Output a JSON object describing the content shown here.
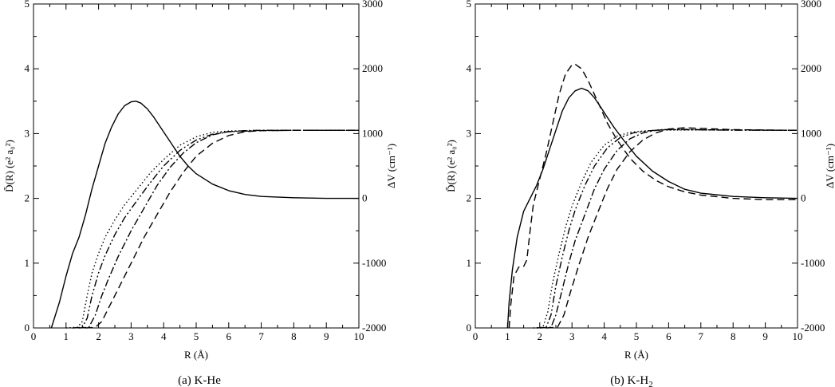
{
  "figure": {
    "captions": [
      "(a) K-He",
      "(b) K-H"
    ],
    "caption_b_subscript": "2"
  },
  "chart_data": [
    {
      "type": "line",
      "panel": "(a) K-He",
      "xlabel": "R (Å)",
      "ylabel": "D̃(R) (e² a₀²)",
      "y2label": "ΔV (cm⁻¹)",
      "xlim": [
        0,
        10
      ],
      "ylim": [
        0,
        5
      ],
      "y2lim": [
        -2000,
        3000
      ],
      "x_ticks": [
        "0",
        "1",
        "2",
        "3",
        "4",
        "5",
        "6",
        "7",
        "8",
        "9",
        "10"
      ],
      "y_ticks": [
        "0",
        "1",
        "2",
        "3",
        "4",
        "5"
      ],
      "y2_ticks": [
        "-2000",
        "-1000",
        "0",
        "1000",
        "2000",
        "3000"
      ],
      "grid": false,
      "series": [
        {
          "style": "solid",
          "axis": "left",
          "points": [
            [
              0.55,
              0
            ],
            [
              0.8,
              0.4
            ],
            [
              1.0,
              0.8
            ],
            [
              1.2,
              1.15
            ],
            [
              1.4,
              1.4
            ],
            [
              1.6,
              1.75
            ],
            [
              1.8,
              2.15
            ],
            [
              2.0,
              2.5
            ],
            [
              2.2,
              2.85
            ],
            [
              2.4,
              3.1
            ],
            [
              2.6,
              3.3
            ],
            [
              2.8,
              3.43
            ],
            [
              3.0,
              3.49
            ],
            [
              3.15,
              3.5
            ],
            [
              3.3,
              3.47
            ],
            [
              3.5,
              3.38
            ],
            [
              3.7,
              3.25
            ],
            [
              3.9,
              3.1
            ],
            [
              4.1,
              2.95
            ],
            [
              4.3,
              2.8
            ],
            [
              4.5,
              2.65
            ],
            [
              4.75,
              2.5
            ],
            [
              5.0,
              2.38
            ],
            [
              5.5,
              2.22
            ],
            [
              6.0,
              2.12
            ],
            [
              6.5,
              2.06
            ],
            [
              7.0,
              2.03
            ],
            [
              8.0,
              2.01
            ],
            [
              9.0,
              2.0
            ],
            [
              10.0,
              2.0
            ]
          ]
        },
        {
          "style": "dotted",
          "axis": "right",
          "points": [
            [
              1.0,
              -2000
            ],
            [
              1.35,
              -1990
            ],
            [
              1.5,
              -1900
            ],
            [
              1.65,
              -1500
            ],
            [
              1.8,
              -1150
            ],
            [
              2.0,
              -850
            ],
            [
              2.2,
              -600
            ],
            [
              2.5,
              -330
            ],
            [
              2.8,
              -100
            ],
            [
              3.2,
              150
            ],
            [
              3.6,
              400
            ],
            [
              4.0,
              600
            ],
            [
              4.5,
              820
            ],
            [
              5.0,
              950
            ],
            [
              5.5,
              1020
            ],
            [
              6.0,
              1040
            ],
            [
              7.0,
              1050
            ],
            [
              8.0,
              1050
            ],
            [
              10.0,
              1050
            ]
          ]
        },
        {
          "style": "dash-dot-dot",
          "axis": "right",
          "points": [
            [
              1.2,
              -2000
            ],
            [
              1.5,
              -1990
            ],
            [
              1.65,
              -1850
            ],
            [
              1.8,
              -1500
            ],
            [
              2.0,
              -1150
            ],
            [
              2.2,
              -880
            ],
            [
              2.5,
              -560
            ],
            [
              2.8,
              -300
            ],
            [
              3.2,
              -20
            ],
            [
              3.6,
              250
            ],
            [
              4.0,
              500
            ],
            [
              4.5,
              740
            ],
            [
              5.0,
              900
            ],
            [
              5.5,
              990
            ],
            [
              6.0,
              1030
            ],
            [
              7.0,
              1045
            ],
            [
              8.0,
              1050
            ],
            [
              10.0,
              1050
            ]
          ]
        },
        {
          "style": "dash-dot",
          "axis": "right",
          "points": [
            [
              1.4,
              -2000
            ],
            [
              1.7,
              -1990
            ],
            [
              1.9,
              -1800
            ],
            [
              2.1,
              -1500
            ],
            [
              2.3,
              -1250
            ],
            [
              2.6,
              -900
            ],
            [
              3.0,
              -500
            ],
            [
              3.4,
              -150
            ],
            [
              3.8,
              200
            ],
            [
              4.2,
              480
            ],
            [
              4.6,
              700
            ],
            [
              5.0,
              860
            ],
            [
              5.5,
              980
            ],
            [
              6.0,
              1030
            ],
            [
              6.5,
              1045
            ],
            [
              7.0,
              1050
            ],
            [
              10.0,
              1050
            ]
          ]
        },
        {
          "style": "dashed",
          "axis": "right",
          "points": [
            [
              1.6,
              -2000
            ],
            [
              1.9,
              -1990
            ],
            [
              2.1,
              -1900
            ],
            [
              2.3,
              -1700
            ],
            [
              2.6,
              -1400
            ],
            [
              3.0,
              -1000
            ],
            [
              3.4,
              -600
            ],
            [
              3.8,
              -250
            ],
            [
              4.2,
              100
            ],
            [
              4.6,
              400
            ],
            [
              5.0,
              650
            ],
            [
              5.5,
              850
            ],
            [
              6.0,
              970
            ],
            [
              6.5,
              1030
            ],
            [
              7.0,
              1045
            ],
            [
              8.0,
              1050
            ],
            [
              10.0,
              1050
            ]
          ]
        }
      ]
    },
    {
      "type": "line",
      "panel": "(b) K-H2",
      "xlabel": "R (Å)",
      "ylabel": "D̃(R) (e² a₀²)",
      "y2label": "ΔV (cm⁻¹)",
      "xlim": [
        0,
        10
      ],
      "ylim": [
        0,
        5
      ],
      "y2lim": [
        -2000,
        3000
      ],
      "x_ticks": [
        "0",
        "1",
        "2",
        "3",
        "4",
        "5",
        "6",
        "7",
        "8",
        "9",
        "10"
      ],
      "y_ticks": [
        "0",
        "1",
        "2",
        "3",
        "4",
        "5"
      ],
      "y2_ticks": [
        "-2000",
        "-1000",
        "0",
        "1000",
        "2000",
        "3000"
      ],
      "grid": false,
      "series": [
        {
          "style": "solid",
          "axis": "left",
          "points": [
            [
              1.0,
              0
            ],
            [
              1.05,
              0.4
            ],
            [
              1.15,
              0.9
            ],
            [
              1.3,
              1.4
            ],
            [
              1.5,
              1.8
            ],
            [
              1.7,
              2.0
            ],
            [
              1.9,
              2.2
            ],
            [
              2.1,
              2.45
            ],
            [
              2.3,
              2.75
            ],
            [
              2.5,
              3.05
            ],
            [
              2.7,
              3.35
            ],
            [
              2.9,
              3.55
            ],
            [
              3.1,
              3.66
            ],
            [
              3.3,
              3.7
            ],
            [
              3.5,
              3.66
            ],
            [
              3.7,
              3.55
            ],
            [
              3.9,
              3.4
            ],
            [
              4.1,
              3.25
            ],
            [
              4.3,
              3.1
            ],
            [
              4.6,
              2.9
            ],
            [
              5.0,
              2.65
            ],
            [
              5.5,
              2.42
            ],
            [
              6.0,
              2.26
            ],
            [
              6.5,
              2.14
            ],
            [
              7.0,
              2.08
            ],
            [
              8.0,
              2.03
            ],
            [
              9.0,
              2.01
            ],
            [
              10.0,
              2.0
            ]
          ]
        },
        {
          "style": "dashed",
          "axis": "left",
          "points": [
            [
              1.05,
              0
            ],
            [
              1.1,
              0.35
            ],
            [
              1.2,
              0.8
            ],
            [
              1.35,
              0.94
            ],
            [
              1.5,
              0.95
            ],
            [
              1.6,
              1.05
            ],
            [
              1.7,
              1.5
            ],
            [
              1.8,
              1.9
            ],
            [
              2.0,
              2.3
            ],
            [
              2.2,
              2.7
            ],
            [
              2.4,
              3.15
            ],
            [
              2.6,
              3.6
            ],
            [
              2.8,
              3.92
            ],
            [
              3.0,
              4.06
            ],
            [
              3.1,
              4.07
            ],
            [
              3.3,
              4.0
            ],
            [
              3.5,
              3.82
            ],
            [
              3.7,
              3.6
            ],
            [
              3.9,
              3.38
            ],
            [
              4.1,
              3.16
            ],
            [
              4.4,
              2.9
            ],
            [
              4.8,
              2.62
            ],
            [
              5.2,
              2.42
            ],
            [
              5.6,
              2.28
            ],
            [
              6.0,
              2.18
            ],
            [
              6.5,
              2.1
            ],
            [
              7.0,
              2.05
            ],
            [
              8.0,
              2.0
            ],
            [
              9.0,
              1.98
            ],
            [
              10.0,
              1.98
            ]
          ]
        },
        {
          "style": "dotted",
          "axis": "right",
          "points": [
            [
              1.8,
              -2000
            ],
            [
              2.1,
              -1990
            ],
            [
              2.25,
              -1750
            ],
            [
              2.4,
              -1300
            ],
            [
              2.6,
              -850
            ],
            [
              2.8,
              -450
            ],
            [
              3.0,
              -120
            ],
            [
              3.3,
              250
            ],
            [
              3.6,
              560
            ],
            [
              4.0,
              820
            ],
            [
              4.4,
              960
            ],
            [
              4.8,
              1020
            ],
            [
              5.2,
              1040
            ],
            [
              5.6,
              1050
            ],
            [
              6.0,
              1055
            ],
            [
              7.0,
              1055
            ],
            [
              10.0,
              1050
            ]
          ]
        },
        {
          "style": "dash-dot-dot",
          "axis": "right",
          "points": [
            [
              1.9,
              -2000
            ],
            [
              2.2,
              -1990
            ],
            [
              2.35,
              -1800
            ],
            [
              2.5,
              -1350
            ],
            [
              2.7,
              -900
            ],
            [
              2.9,
              -500
            ],
            [
              3.1,
              -180
            ],
            [
              3.4,
              200
            ],
            [
              3.7,
              500
            ],
            [
              4.1,
              780
            ],
            [
              4.5,
              940
            ],
            [
              4.9,
              1010
            ],
            [
              5.3,
              1040
            ],
            [
              5.8,
              1060
            ],
            [
              6.5,
              1060
            ],
            [
              7.5,
              1055
            ],
            [
              10.0,
              1050
            ]
          ]
        },
        {
          "style": "dash-dot",
          "axis": "right",
          "points": [
            [
              2.0,
              -2000
            ],
            [
              2.35,
              -1990
            ],
            [
              2.5,
              -1800
            ],
            [
              2.7,
              -1400
            ],
            [
              2.9,
              -1000
            ],
            [
              3.1,
              -650
            ],
            [
              3.4,
              -250
            ],
            [
              3.7,
              150
            ],
            [
              4.0,
              450
            ],
            [
              4.4,
              740
            ],
            [
              4.8,
              920
            ],
            [
              5.2,
              1010
            ],
            [
              5.6,
              1050
            ],
            [
              6.0,
              1065
            ],
            [
              6.5,
              1065
            ],
            [
              7.5,
              1055
            ],
            [
              10.0,
              1050
            ]
          ]
        },
        {
          "style": "dashed",
          "axis": "right",
          "points": [
            [
              2.2,
              -2000
            ],
            [
              2.55,
              -1990
            ],
            [
              2.75,
              -1800
            ],
            [
              2.95,
              -1450
            ],
            [
              3.2,
              -1050
            ],
            [
              3.5,
              -600
            ],
            [
              3.8,
              -220
            ],
            [
              4.1,
              150
            ],
            [
              4.4,
              450
            ],
            [
              4.8,
              720
            ],
            [
              5.2,
              900
            ],
            [
              5.6,
              1010
            ],
            [
              6.0,
              1070
            ],
            [
              6.5,
              1090
            ],
            [
              7.0,
              1080
            ],
            [
              8.0,
              1060
            ],
            [
              10.0,
              1050
            ]
          ]
        }
      ]
    }
  ]
}
